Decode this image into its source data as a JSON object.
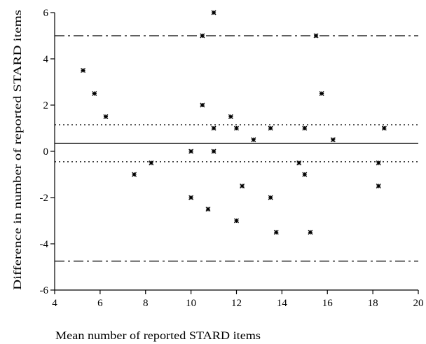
{
  "chart_data": {
    "type": "scatter",
    "title": "",
    "xlabel": "Mean number of reported STARD items",
    "ylabel": "Difference in number of reported STARD items",
    "xlim": [
      4,
      20
    ],
    "ylim": [
      -6,
      6
    ],
    "xticks": [
      4,
      6,
      8,
      10,
      12,
      14,
      16,
      18,
      20
    ],
    "yticks": [
      -6,
      -4,
      -2,
      0,
      2,
      4,
      6
    ],
    "xtick_labels": [
      "4",
      "6",
      "8",
      "10",
      "12",
      "14",
      "16",
      "18",
      "20"
    ],
    "ytick_labels": [
      "-6",
      "-4",
      "-2",
      "0",
      "2",
      "4",
      "6"
    ],
    "grid": false,
    "marker": "*",
    "points": [
      {
        "x": 5.25,
        "y": 3.5
      },
      {
        "x": 5.75,
        "y": 2.5
      },
      {
        "x": 6.25,
        "y": 1.5
      },
      {
        "x": 7.5,
        "y": -1.0
      },
      {
        "x": 8.25,
        "y": -0.5
      },
      {
        "x": 10.0,
        "y": 0.0
      },
      {
        "x": 10.0,
        "y": -2.0
      },
      {
        "x": 10.5,
        "y": 5.0
      },
      {
        "x": 10.5,
        "y": 2.0
      },
      {
        "x": 10.75,
        "y": -2.5
      },
      {
        "x": 11.0,
        "y": 6.0
      },
      {
        "x": 11.0,
        "y": 1.0
      },
      {
        "x": 11.0,
        "y": 0.0
      },
      {
        "x": 11.75,
        "y": 1.5
      },
      {
        "x": 12.0,
        "y": 1.0
      },
      {
        "x": 12.0,
        "y": -3.0
      },
      {
        "x": 12.25,
        "y": -1.5
      },
      {
        "x": 12.75,
        "y": 0.5
      },
      {
        "x": 13.5,
        "y": 1.0
      },
      {
        "x": 13.5,
        "y": -2.0
      },
      {
        "x": 13.75,
        "y": -3.5
      },
      {
        "x": 14.75,
        "y": -0.5
      },
      {
        "x": 15.0,
        "y": 1.0
      },
      {
        "x": 15.0,
        "y": -1.0
      },
      {
        "x": 15.25,
        "y": -3.5
      },
      {
        "x": 15.5,
        "y": 5.0
      },
      {
        "x": 15.75,
        "y": 2.5
      },
      {
        "x": 16.25,
        "y": 0.5
      },
      {
        "x": 18.25,
        "y": -0.5
      },
      {
        "x": 18.25,
        "y": -1.5
      },
      {
        "x": 18.5,
        "y": 1.0
      }
    ],
    "reference_lines": [
      {
        "kind": "mean-difference",
        "y": 0.35,
        "style": "solid"
      },
      {
        "kind": "mean-ci-upper",
        "y": 1.15,
        "style": "dotted"
      },
      {
        "kind": "mean-ci-lower",
        "y": -0.45,
        "style": "dotted"
      },
      {
        "kind": "upper-limit-of-agreement",
        "y": 5.0,
        "style": "dashdot"
      },
      {
        "kind": "lower-limit-of-agreement",
        "y": -4.75,
        "style": "dashdot"
      }
    ],
    "colors": {
      "axis": "#000000",
      "marker": "#000000",
      "background": "#ffffff"
    }
  }
}
